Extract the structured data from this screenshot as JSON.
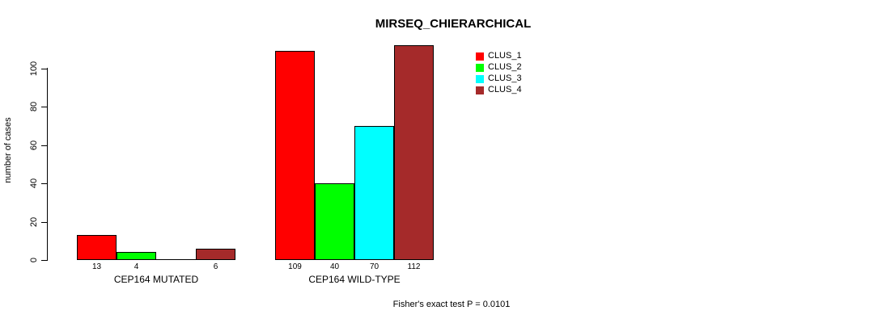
{
  "chart_data": {
    "type": "bar",
    "title": "MIRSEQ_CHIERARCHICAL",
    "ylabel": "number of cases",
    "xlabel": "",
    "yticks": [
      0,
      20,
      40,
      60,
      80,
      100
    ],
    "ylim": [
      0,
      113
    ],
    "grid": false,
    "legend_position": "top-right",
    "categories": [
      "CEP164 MUTATED",
      "CEP164 WILD-TYPE"
    ],
    "series": [
      {
        "name": "CLUS_1",
        "color": "#FF0000",
        "values": [
          13,
          109
        ]
      },
      {
        "name": "CLUS_2",
        "color": "#00FF00",
        "values": [
          4,
          40
        ]
      },
      {
        "name": "CLUS_3",
        "color": "#00FFFF",
        "values": [
          0,
          70
        ]
      },
      {
        "name": "CLUS_4",
        "color": "#A52A2A",
        "values": [
          6,
          112
        ]
      }
    ],
    "bar_value_labels": [
      [
        "13",
        "4",
        "",
        "6"
      ],
      [
        "109",
        "40",
        "70",
        "112"
      ]
    ],
    "footnote": "Fisher's exact test P = 0.0101"
  }
}
